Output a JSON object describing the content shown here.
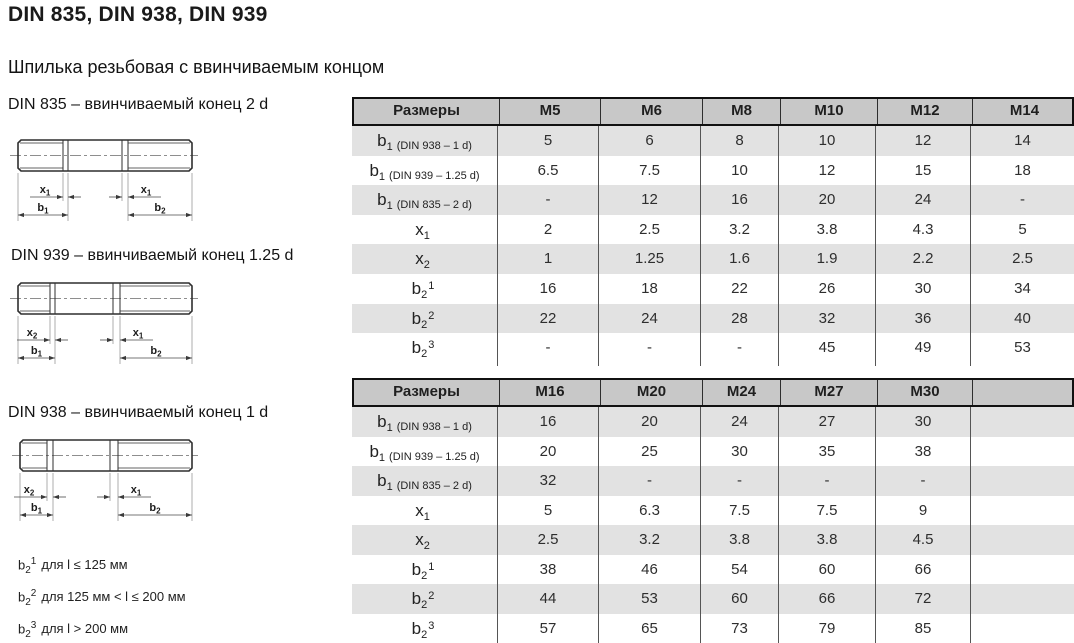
{
  "page": {
    "title": "DIN 835, DIN 938, DIN 939",
    "subtitle": "Шпилька резьбовая с ввинчиваемым концом"
  },
  "colors": {
    "header_bg": "#c8c8c8",
    "stripe_bg": "#e2e2e2",
    "table_frame": "#111111",
    "grid_line": "#555555"
  },
  "drawings": [
    {
      "title": "DIN 835 – ввинчиваемый конец 2 d",
      "dims": {
        "left_small": {
          "base": "x",
          "sub": "1"
        },
        "left_big": {
          "base": "b",
          "sub": "1"
        },
        "right_small": {
          "base": "x",
          "sub": "1"
        },
        "right_big": {
          "base": "b",
          "sub": "2"
        }
      }
    },
    {
      "title": "DIN 939 – ввинчиваемый конец 1.25 d",
      "dims": {
        "left_small": {
          "base": "x",
          "sub": "2"
        },
        "left_big": {
          "base": "b",
          "sub": "1"
        },
        "right_small": {
          "base": "x",
          "sub": "1"
        },
        "right_big": {
          "base": "b",
          "sub": "2"
        }
      }
    },
    {
      "title": "DIN 938 – ввинчиваемый конец 1 d",
      "dims": {
        "left_small": {
          "base": "x",
          "sub": "2"
        },
        "left_big": {
          "base": "b",
          "sub": "1"
        },
        "right_small": {
          "base": "x",
          "sub": "1"
        },
        "right_big": {
          "base": "b",
          "sub": "2"
        }
      }
    }
  ],
  "footnotes": [
    {
      "base": "b",
      "sub": "2",
      "sup": "1",
      "text": "для l ≤ 125 мм"
    },
    {
      "base": "b",
      "sub": "2",
      "sup": "2",
      "text": "для 125 мм < l ≤ 200 мм"
    },
    {
      "base": "b",
      "sub": "2",
      "sup": "3",
      "text": "для l > 200 мм"
    }
  ],
  "tables": [
    {
      "headers": [
        "Размеры",
        "M5",
        "M6",
        "M8",
        "M10",
        "M12",
        "M14"
      ],
      "rows": [
        {
          "label": {
            "base": "b",
            "sub": "1",
            "note": "(DIN 938 – 1 d)"
          },
          "values": [
            "5",
            "6",
            "8",
            "10",
            "12",
            "14"
          ]
        },
        {
          "label": {
            "base": "b",
            "sub": "1",
            "note": "(DIN 939 – 1.25 d)"
          },
          "values": [
            "6.5",
            "7.5",
            "10",
            "12",
            "15",
            "18"
          ]
        },
        {
          "label": {
            "base": "b",
            "sub": "1",
            "note": "(DIN 835 – 2 d)"
          },
          "values": [
            "-",
            "12",
            "16",
            "20",
            "24",
            "-"
          ]
        },
        {
          "label": {
            "base": "x",
            "sub": "1"
          },
          "values": [
            "2",
            "2.5",
            "3.2",
            "3.8",
            "4.3",
            "5"
          ]
        },
        {
          "label": {
            "base": "x",
            "sub": "2"
          },
          "values": [
            "1",
            "1.25",
            "1.6",
            "1.9",
            "2.2",
            "2.5"
          ]
        },
        {
          "label": {
            "base": "b",
            "sub": "2",
            "sup": "1"
          },
          "values": [
            "16",
            "18",
            "22",
            "26",
            "30",
            "34"
          ]
        },
        {
          "label": {
            "base": "b",
            "sub": "2",
            "sup": "2"
          },
          "values": [
            "22",
            "24",
            "28",
            "32",
            "36",
            "40"
          ]
        },
        {
          "label": {
            "base": "b",
            "sub": "2",
            "sup": "3"
          },
          "values": [
            "-",
            "-",
            "-",
            "45",
            "49",
            "53"
          ]
        }
      ]
    },
    {
      "headers": [
        "Размеры",
        "M16",
        "M20",
        "M24",
        "M27",
        "M30",
        ""
      ],
      "rows": [
        {
          "label": {
            "base": "b",
            "sub": "1",
            "note": "(DIN 938 – 1 d)"
          },
          "values": [
            "16",
            "20",
            "24",
            "27",
            "30",
            ""
          ]
        },
        {
          "label": {
            "base": "b",
            "sub": "1",
            "note": "(DIN 939 – 1.25 d)"
          },
          "values": [
            "20",
            "25",
            "30",
            "35",
            "38",
            ""
          ]
        },
        {
          "label": {
            "base": "b",
            "sub": "1",
            "note": "(DIN 835 – 2 d)"
          },
          "values": [
            "32",
            "-",
            "-",
            "-",
            "-",
            ""
          ]
        },
        {
          "label": {
            "base": "x",
            "sub": "1"
          },
          "values": [
            "5",
            "6.3",
            "7.5",
            "7.5",
            "9",
            ""
          ]
        },
        {
          "label": {
            "base": "x",
            "sub": "2"
          },
          "values": [
            "2.5",
            "3.2",
            "3.8",
            "3.8",
            "4.5",
            ""
          ]
        },
        {
          "label": {
            "base": "b",
            "sub": "2",
            "sup": "1"
          },
          "values": [
            "38",
            "46",
            "54",
            "60",
            "66",
            ""
          ]
        },
        {
          "label": {
            "base": "b",
            "sub": "2",
            "sup": "2"
          },
          "values": [
            "44",
            "53",
            "60",
            "66",
            "72",
            ""
          ]
        },
        {
          "label": {
            "base": "b",
            "sub": "2",
            "sup": "3"
          },
          "values": [
            "57",
            "65",
            "73",
            "79",
            "85",
            ""
          ]
        }
      ]
    }
  ]
}
